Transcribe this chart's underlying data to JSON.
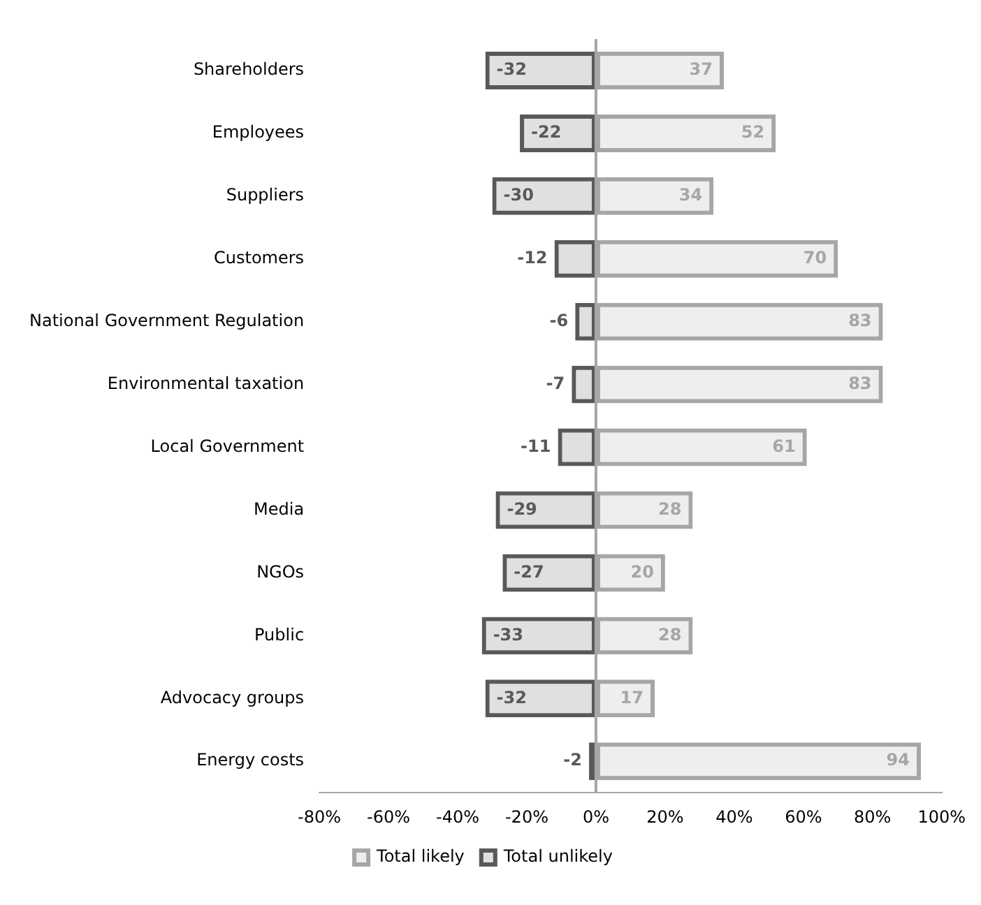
{
  "chart_data": {
    "type": "bar",
    "orientation": "horizontal",
    "stacked": true,
    "categories": [
      "Shareholders",
      "Employees",
      "Suppliers",
      "Customers",
      "National Government Regulation",
      "Environmental taxation",
      "Local Government",
      "Media",
      "NGOs",
      "Public",
      "Advocacy groups",
      "Energy costs"
    ],
    "series": [
      {
        "name": "Total likely",
        "color": "#a6a6a6",
        "values": [
          37,
          52,
          34,
          70,
          83,
          83,
          61,
          28,
          20,
          28,
          17,
          94
        ]
      },
      {
        "name": "Total unlikely",
        "color": "#595959",
        "values": [
          -32,
          -22,
          -30,
          -12,
          -6,
          -7,
          -11,
          -29,
          -27,
          -33,
          -32,
          -2
        ]
      }
    ],
    "xlim": [
      -80,
      100
    ],
    "xticks": [
      {
        "value": -80,
        "label": "-80%"
      },
      {
        "value": -60,
        "label": "-60%"
      },
      {
        "value": -40,
        "label": "-40%"
      },
      {
        "value": -20,
        "label": "-20%"
      },
      {
        "value": 0,
        "label": "0%"
      },
      {
        "value": 20,
        "label": "20%"
      },
      {
        "value": 40,
        "label": "40%"
      },
      {
        "value": 60,
        "label": "60%"
      },
      {
        "value": 80,
        "label": "80%"
      },
      {
        "value": 100,
        "label": "100%"
      }
    ],
    "ref_lines": [
      {
        "axis": "x",
        "value": 0,
        "color": "#a6a6a6"
      }
    ],
    "data_labels": true,
    "legend": "bottom",
    "grid": false
  }
}
